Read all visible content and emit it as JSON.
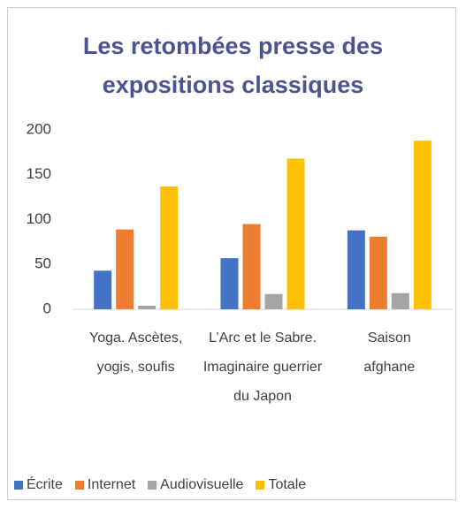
{
  "chart_data": {
    "type": "bar",
    "title": "Les retombées presse des expositions classiques",
    "categories": [
      "Yoga. Ascètes, yogis, soufis",
      "L’Arc et le Sabre. Imaginaire guerrier du Japon",
      "Saison afghane"
    ],
    "series": [
      {
        "name": "Écrite",
        "color": "#4472c4",
        "values": [
          43,
          57,
          88
        ]
      },
      {
        "name": "Internet",
        "color": "#ed7d31",
        "values": [
          89,
          95,
          81
        ]
      },
      {
        "name": "Audiovisuelle",
        "color": "#a5a5a5",
        "values": [
          4,
          17,
          18
        ]
      },
      {
        "name": "Totale",
        "color": "#ffc000",
        "values": [
          137,
          168,
          188
        ]
      }
    ],
    "ylim": [
      0,
      200
    ],
    "yticks": [
      0,
      50,
      100,
      150,
      200
    ],
    "grid": false,
    "legend": "bottom"
  }
}
